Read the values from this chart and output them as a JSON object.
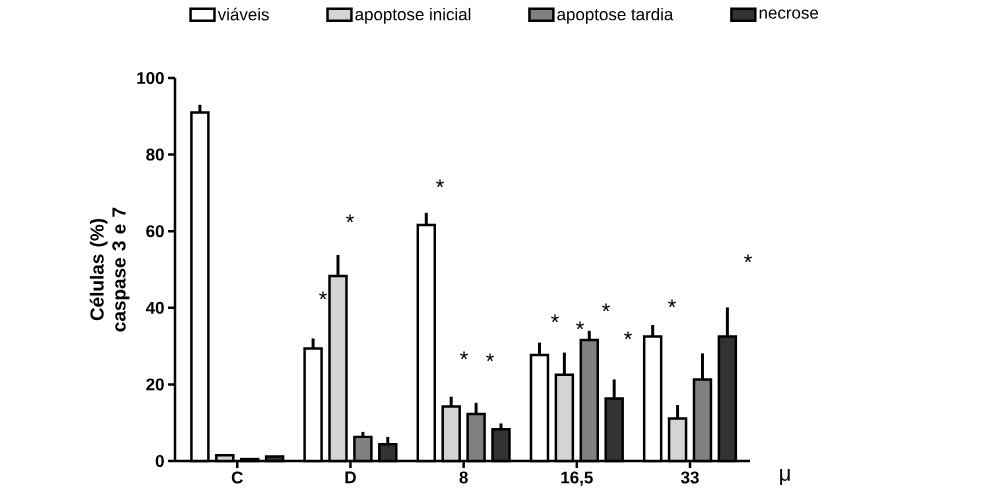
{
  "chart_data": {
    "type": "bar",
    "ylabel": "Células (%) caspase 3 e 7",
    "categories": [
      "C",
      "D",
      "8",
      "16,5",
      "33"
    ],
    "ylim": [
      0,
      100
    ],
    "yticks": [
      0,
      20,
      40,
      60,
      80,
      100
    ],
    "legend": "top",
    "grid": false,
    "series": [
      {
        "name": "viáveis",
        "color": "#ffffff",
        "values": [
          91,
          29.4,
          61.6,
          27.7,
          32.5
        ],
        "errors": [
          [
            91,
            93
          ],
          [
            29.4,
            32
          ],
          [
            61.6,
            64.8
          ],
          [
            27.7,
            30.9
          ],
          [
            32.5,
            35.5
          ]
        ]
      },
      {
        "name": "apoptose inicial",
        "color": "#d4d4d4",
        "values": [
          1.5,
          48.3,
          14.2,
          22.5,
          11.1
        ],
        "errors": [
          null,
          [
            48.3,
            53.8
          ],
          [
            14.2,
            16.8
          ],
          [
            22.5,
            28.3
          ],
          [
            11.1,
            14.6
          ]
        ]
      },
      {
        "name": "apoptose tardia",
        "color": "#808080",
        "values": [
          0.5,
          6.3,
          12.3,
          31.6,
          21.3
        ],
        "errors": [
          null,
          [
            6.3,
            7.6
          ],
          [
            12.3,
            15.2
          ],
          [
            31.6,
            34
          ],
          [
            21.3,
            28.1
          ]
        ]
      },
      {
        "name": "necrose",
        "color": "#333333",
        "values": [
          1.2,
          4.4,
          8.3,
          16.3,
          32.5
        ],
        "errors": [
          null,
          [
            4.4,
            6.3
          ],
          [
            8.3,
            9.8
          ],
          [
            16.3,
            21.3
          ],
          [
            32.5,
            40.1
          ]
        ]
      }
    ],
    "annotations": [
      "*",
      "*",
      "*",
      "*",
      "*",
      "*",
      "*",
      "*",
      "*",
      "*",
      "*",
      "μ"
    ]
  }
}
